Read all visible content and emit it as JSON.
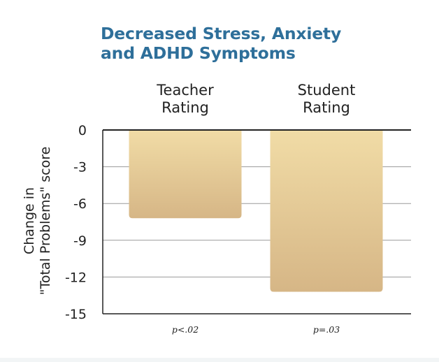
{
  "title_line1": "Decreased Stress, Anxiety",
  "title_line2": "and ADHD Symptoms",
  "colors": {
    "title": "#2e6f9a",
    "bar_top": "#f1dca6",
    "bar_bottom": "#d6b686",
    "grid": "#9a9a9a",
    "axis": "#222222",
    "text": "#222222"
  },
  "chart_data": {
    "type": "bar",
    "title": "Decreased Stress, Anxiety and ADHD Symptoms",
    "categories": [
      "Teacher Rating",
      "Student Rating"
    ],
    "category_lines": [
      [
        "Teacher",
        "Rating"
      ],
      [
        "Student",
        "Rating"
      ]
    ],
    "values": [
      -7.2,
      -13.2
    ],
    "annotations": [
      "p<.02",
      "p=.03"
    ],
    "xlabel": "",
    "ylabel": "Change in \"Total Problems\" score",
    "ylabel_lines": [
      "Change in",
      "\"Total Problems\" score"
    ],
    "ylim": [
      -15,
      0
    ],
    "yticks": [
      0,
      -3,
      -6,
      -9,
      -12,
      -15
    ],
    "grid": true
  }
}
